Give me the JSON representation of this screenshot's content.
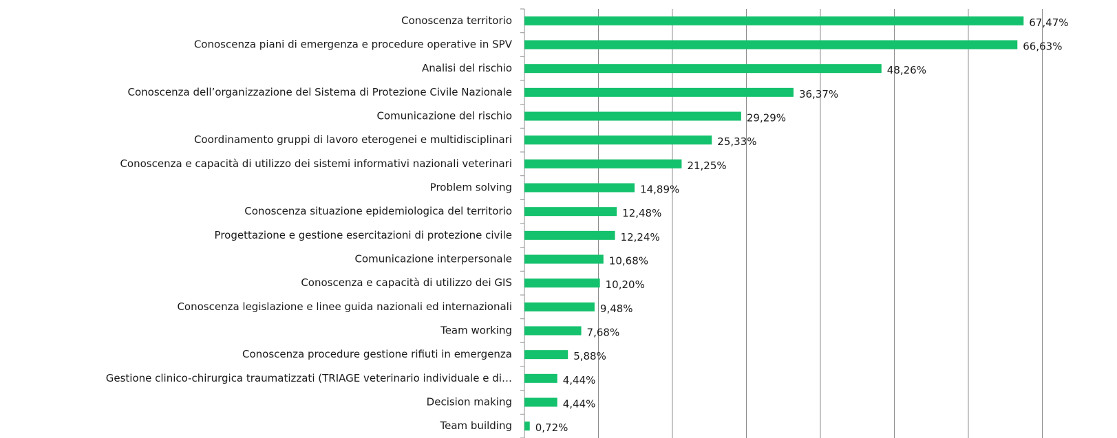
{
  "chart_data": {
    "type": "bar",
    "orientation": "horizontal",
    "categories": [
      "Conoscenza territorio",
      "Conoscenza piani di emergenza e procedure operative in SPV",
      "Analisi del rischio",
      "Conoscenza dell’organizzazione del Sistema di Protezione Civile Nazionale",
      "Comunicazione del rischio",
      "Coordinamento  gruppi di lavoro eterogenei e multidisciplinari",
      "Conoscenza e capacità di utilizzo dei sistemi informativi nazionali veterinari",
      "Problem solving",
      "Conoscenza situazione epidemiologica del territorio",
      "Progettazione e gestione esercitazioni di protezione civile",
      "Comunicazione interpersonale",
      "Conoscenza e capacità di utilizzo dei GIS",
      "Conoscenza legislazione e linee guida nazionali ed internazionali",
      "Team working",
      "Conoscenza procedure gestione rifiuti in emergenza",
      "Gestione clinico-chirurgica traumatizzati (TRIAGE veterinario individuale e di…",
      "Decision making",
      "Team building"
    ],
    "values": [
      67.47,
      66.63,
      48.26,
      36.37,
      29.29,
      25.33,
      21.25,
      14.89,
      12.48,
      12.24,
      10.68,
      10.2,
      9.48,
      7.68,
      5.88,
      4.44,
      4.44,
      0.72
    ],
    "value_labels": [
      "67,47%",
      "66,63%",
      "48,26%",
      "36,37%",
      "29,29%",
      "25,33%",
      "21,25%",
      "14,89%",
      "12,48%",
      "12,24%",
      "10,68%",
      "10,20%",
      "9,48%",
      "7,68%",
      "5,88%",
      "4,44%",
      "4,44%",
      "0,72%"
    ],
    "color": "#14c16c",
    "xlim": [
      0,
      80
    ],
    "xticks": [
      10,
      20,
      30,
      40,
      50,
      60,
      70
    ],
    "grid": true
  }
}
